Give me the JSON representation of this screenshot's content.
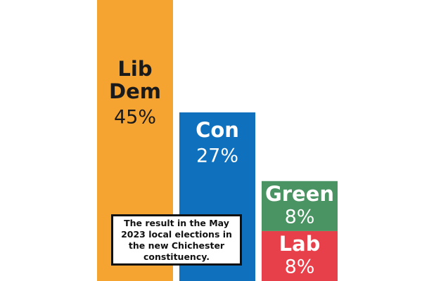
{
  "chart_data": {
    "type": "stacked-bar",
    "bars": [
      {
        "segments": [
          {
            "name": "Lib Dem",
            "value": 45,
            "value_label": "45%",
            "color": "#f5a431",
            "text_color": "#1a1a1a"
          }
        ]
      },
      {
        "segments": [
          {
            "name": "Con",
            "value": 27,
            "value_label": "27%",
            "color": "#0f71bd",
            "text_color": "#ffffff"
          }
        ]
      },
      {
        "segments": [
          {
            "name": "Lab",
            "value": 8,
            "value_label": "8%",
            "color": "#e8404a",
            "text_color": "#ffffff"
          },
          {
            "name": "Green",
            "value": 8,
            "value_label": "8%",
            "color": "#4a9362",
            "text_color": "#ffffff"
          }
        ]
      }
    ],
    "annotation": "The result in the May 2023 local elections in the new Chichester constituency.",
    "ylim": [
      0,
      45
    ]
  }
}
